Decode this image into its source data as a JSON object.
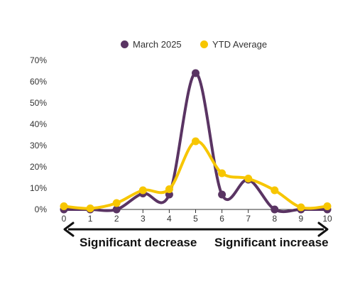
{
  "colors": {
    "march": "#5A3463",
    "ytd": "#F7C600",
    "axis": "#333333",
    "gridline": "#dddddd"
  },
  "legend": [
    {
      "label": "March 2025",
      "color": "#5A3463"
    },
    {
      "label": "YTD Average",
      "color": "#F7C600"
    }
  ],
  "range_labels": {
    "left": "Significant decrease",
    "right": "Significant increase"
  },
  "chart_data": {
    "type": "line",
    "title": "",
    "xlabel": "",
    "ylabel": "",
    "x": [
      0,
      1,
      2,
      3,
      4,
      5,
      6,
      7,
      8,
      9,
      10
    ],
    "ylim": [
      0,
      70
    ],
    "y_ticks": [
      "0%",
      "10%",
      "20%",
      "30%",
      "40%",
      "50%",
      "60%",
      "70%"
    ],
    "grid": false,
    "legend_position": "top",
    "smooth": true,
    "series": [
      {
        "name": "March 2025",
        "color": "#5A3463",
        "values": [
          0,
          0,
          0,
          7.5,
          7,
          64,
          7,
          14,
          0,
          0,
          0
        ]
      },
      {
        "name": "YTD Average",
        "color": "#F7C600",
        "values": [
          1.5,
          0.5,
          3,
          9,
          9.5,
          32,
          17,
          14.5,
          9,
          1,
          1.5
        ]
      }
    ]
  }
}
